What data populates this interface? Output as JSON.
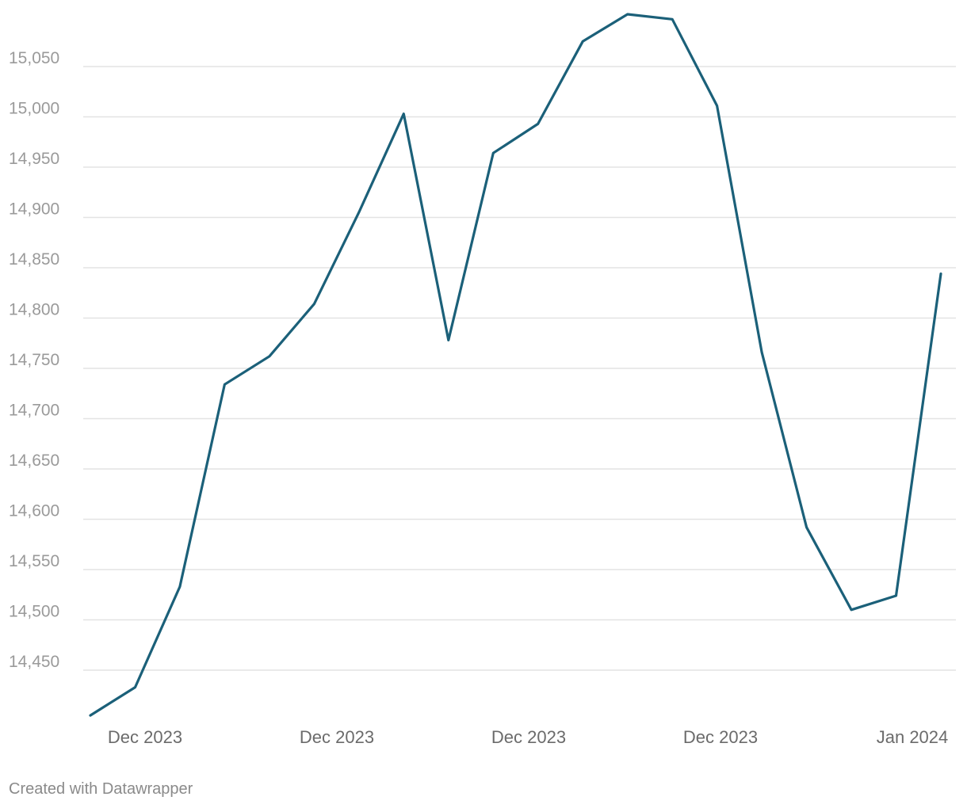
{
  "chart_data": {
    "type": "line",
    "title": "",
    "xlabel": "",
    "ylabel": "",
    "grid": true,
    "line_color": "#1b6079",
    "x_tick_labels": [
      "Dec 2023",
      "Dec 2023",
      "Dec 2023",
      "Dec 2023",
      "Jan 2024"
    ],
    "y_ticks": [
      14450,
      14500,
      14550,
      14600,
      14650,
      14700,
      14750,
      14800,
      14850,
      14900,
      14950,
      15000,
      15050
    ],
    "y_tick_labels": [
      "14,450",
      "14,500",
      "14,550",
      "14,600",
      "14,650",
      "14,700",
      "14,750",
      "14,800",
      "14,850",
      "14,900",
      "14,950",
      "15,000",
      "15,050"
    ],
    "ylim": [
      14405,
      15101
    ],
    "series": [
      {
        "values": [
          14405,
          14433,
          14533,
          14734,
          14762,
          14814,
          14905,
          15003,
          14778,
          14964,
          14993,
          15075,
          15102,
          15097,
          15011,
          14766,
          14592,
          14510,
          14524,
          14844
        ],
        "dates": [
          "2023-12-01",
          "2023-12-04",
          "2023-12-05",
          "2023-12-06",
          "2023-12-07",
          "2023-12-08",
          "2023-12-11",
          "2023-12-12",
          "2023-12-13",
          "2023-12-14",
          "2023-12-15",
          "2023-12-18",
          "2023-12-19",
          "2023-12-20",
          "2023-12-21",
          "2023-12-25",
          "2023-12-26",
          "2023-12-27",
          "2023-12-28",
          "2024-01-01"
        ]
      }
    ]
  },
  "footer": {
    "credit": "Created with Datawrapper"
  }
}
